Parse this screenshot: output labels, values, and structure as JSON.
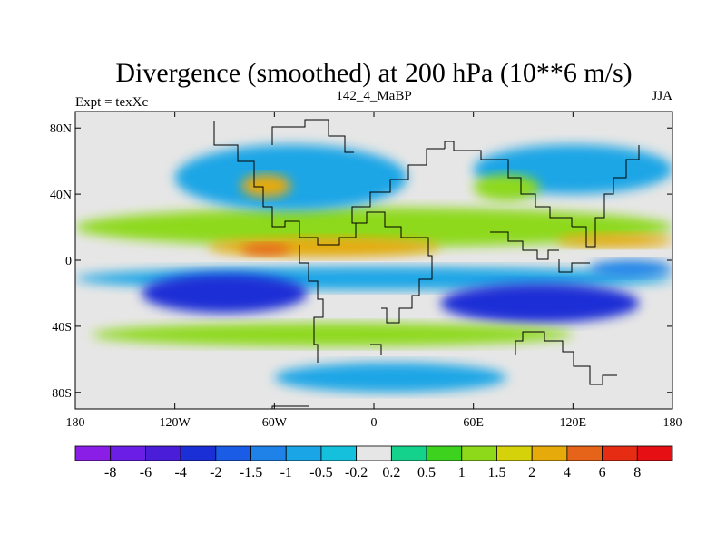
{
  "chart_data": {
    "type": "heatmap",
    "title": "Divergence (smoothed) at 200 hPa (10**6 m/s)",
    "left_subtitle": "Expt = texXc",
    "center_subtitle": "142_4_MaBP",
    "right_subtitle": "JJA",
    "x_ticks": [
      {
        "value": -180,
        "label": "180"
      },
      {
        "value": -120,
        "label": "120W"
      },
      {
        "value": -60,
        "label": "60W"
      },
      {
        "value": 0,
        "label": "0"
      },
      {
        "value": 60,
        "label": "60E"
      },
      {
        "value": 120,
        "label": "120E"
      },
      {
        "value": 180,
        "label": "180"
      }
    ],
    "y_ticks": [
      {
        "value": 80,
        "label": "80N"
      },
      {
        "value": 40,
        "label": "40N"
      },
      {
        "value": 0,
        "label": "0"
      },
      {
        "value": -40,
        "label": "40S"
      },
      {
        "value": -80,
        "label": "80S"
      }
    ],
    "xlim": [
      -180,
      180
    ],
    "ylim": [
      -90,
      90
    ],
    "colorbar": {
      "levels": [
        "-8",
        "-6",
        "-4",
        "-2",
        "-1.5",
        "-1",
        "-0.5",
        "-0.2",
        "0.2",
        "0.5",
        "1",
        "1.5",
        "2",
        "4",
        "6",
        "8"
      ],
      "colors": [
        "#8a1ee6",
        "#6a1ee6",
        "#4a1ed9",
        "#1a2fd6",
        "#1a5ce6",
        "#1f82e8",
        "#1aa6e6",
        "#14c0dc",
        "#e6e6e6",
        "#14d28c",
        "#3cd21e",
        "#8ed91a",
        "#d6d20a",
        "#e6aa0a",
        "#e6641a",
        "#e62d14",
        "#e60f14"
      ]
    },
    "regions": [
      {
        "value": -1,
        "lon": [
          -180,
          180
        ],
        "lat": [
          -18,
          -4
        ]
      },
      {
        "value": -3,
        "lon": [
          -140,
          -40
        ],
        "lat": [
          -32,
          -8
        ]
      },
      {
        "value": -3,
        "lon": [
          40,
          160
        ],
        "lat": [
          -38,
          -14
        ]
      },
      {
        "value": 1,
        "lon": [
          -180,
          180
        ],
        "lat": [
          8,
          32
        ]
      },
      {
        "value": 3,
        "lon": [
          -100,
          40
        ],
        "lat": [
          2,
          14
        ]
      },
      {
        "value": 5,
        "lon": [
          -80,
          -50
        ],
        "lat": [
          3,
          10
        ]
      },
      {
        "value": 3,
        "lon": [
          110,
          180
        ],
        "lat": [
          8,
          16
        ]
      },
      {
        "value": 1,
        "lon": [
          -170,
          120
        ],
        "lat": [
          -52,
          -38
        ]
      },
      {
        "value": -0.8,
        "lon": [
          -60,
          80
        ],
        "lat": [
          -80,
          -62
        ]
      },
      {
        "value": -0.8,
        "lon": [
          -120,
          20
        ],
        "lat": [
          30,
          70
        ]
      },
      {
        "value": -0.8,
        "lon": [
          60,
          180
        ],
        "lat": [
          40,
          70
        ]
      },
      {
        "value": 2,
        "lon": [
          -80,
          -50
        ],
        "lat": [
          38,
          52
        ]
      },
      {
        "value": 1,
        "lon": [
          60,
          100
        ],
        "lat": [
          36,
          52
        ]
      },
      {
        "value": -1.2,
        "lon": [
          130,
          180
        ],
        "lat": [
          -10,
          0
        ]
      }
    ]
  }
}
